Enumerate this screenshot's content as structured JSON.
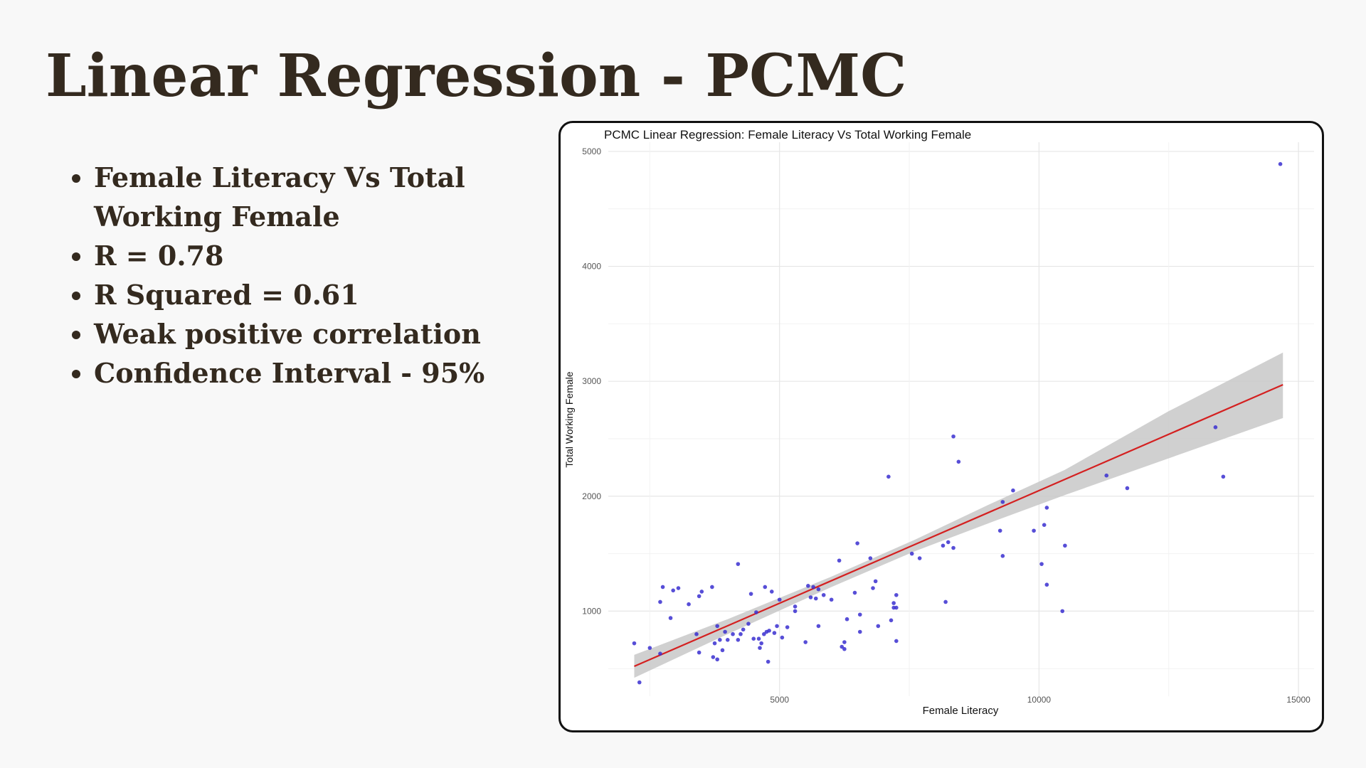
{
  "slide": {
    "title": "Linear Regression - PCMC",
    "bullets": [
      "Female Literacy Vs Total Working Female",
      "R = 0.78",
      "R Squared = 0.61",
      "Weak positive correlation",
      "Confidence Interval - 95%"
    ]
  },
  "chart_data": {
    "type": "scatter",
    "title": "PCMC Linear Regression: Female Literacy Vs Total Working Female",
    "xlabel": "Female Literacy",
    "ylabel": "Total Working Female",
    "xlim": [
      1700,
      15300
    ],
    "ylim": [
      260,
      5080
    ],
    "x_ticks": [
      5000,
      10000,
      15000
    ],
    "x_tick_labels": [
      "5000",
      "10000",
      "15000"
    ],
    "y_ticks": [
      1000,
      2000,
      3000,
      4000,
      5000
    ],
    "y_tick_labels": [
      "1000",
      "2000",
      "3000",
      "4000",
      "5000"
    ],
    "grid": true,
    "legend": "none",
    "point_color": "#3a2fd0",
    "line_color": "#d42020",
    "band_color": "#c8c8c8",
    "regression": {
      "x_start": 2200,
      "y_start": 520,
      "x_end": 14700,
      "y_end": 2970
    },
    "confidence_band": [
      {
        "x": 2200,
        "lower": 420,
        "upper": 620
      },
      {
        "x": 4000,
        "lower": 800,
        "upper": 930
      },
      {
        "x": 6000,
        "lower": 1210,
        "upper": 1300
      },
      {
        "x": 7600,
        "lower": 1520,
        "upper": 1620
      },
      {
        "x": 9000,
        "lower": 1760,
        "upper": 1920
      },
      {
        "x": 10500,
        "lower": 2010,
        "upper": 2230
      },
      {
        "x": 12500,
        "lower": 2330,
        "upper": 2740
      },
      {
        "x": 14700,
        "lower": 2680,
        "upper": 3250
      }
    ],
    "points": [
      {
        "x": 2200,
        "y": 720
      },
      {
        "x": 2300,
        "y": 380
      },
      {
        "x": 2500,
        "y": 680
      },
      {
        "x": 2700,
        "y": 630
      },
      {
        "x": 2700,
        "y": 1080
      },
      {
        "x": 2750,
        "y": 1210
      },
      {
        "x": 2900,
        "y": 940
      },
      {
        "x": 2950,
        "y": 1180
      },
      {
        "x": 3050,
        "y": 1200
      },
      {
        "x": 3250,
        "y": 1060
      },
      {
        "x": 3400,
        "y": 800
      },
      {
        "x": 3450,
        "y": 640
      },
      {
        "x": 3450,
        "y": 1130
      },
      {
        "x": 3500,
        "y": 1170
      },
      {
        "x": 3700,
        "y": 1210
      },
      {
        "x": 3720,
        "y": 600
      },
      {
        "x": 3750,
        "y": 720
      },
      {
        "x": 3800,
        "y": 580
      },
      {
        "x": 3800,
        "y": 870
      },
      {
        "x": 3850,
        "y": 750
      },
      {
        "x": 3900,
        "y": 660
      },
      {
        "x": 3950,
        "y": 820
      },
      {
        "x": 4000,
        "y": 750
      },
      {
        "x": 4100,
        "y": 800
      },
      {
        "x": 4200,
        "y": 750
      },
      {
        "x": 4200,
        "y": 1410
      },
      {
        "x": 4250,
        "y": 800
      },
      {
        "x": 4300,
        "y": 840
      },
      {
        "x": 4400,
        "y": 890
      },
      {
        "x": 4450,
        "y": 1150
      },
      {
        "x": 4500,
        "y": 760
      },
      {
        "x": 4550,
        "y": 990
      },
      {
        "x": 4600,
        "y": 760
      },
      {
        "x": 4620,
        "y": 680
      },
      {
        "x": 4650,
        "y": 720
      },
      {
        "x": 4700,
        "y": 800
      },
      {
        "x": 4720,
        "y": 1210
      },
      {
        "x": 4750,
        "y": 820
      },
      {
        "x": 4780,
        "y": 560
      },
      {
        "x": 4800,
        "y": 830
      },
      {
        "x": 4850,
        "y": 1170
      },
      {
        "x": 4900,
        "y": 810
      },
      {
        "x": 4950,
        "y": 870
      },
      {
        "x": 5000,
        "y": 1100
      },
      {
        "x": 5050,
        "y": 770
      },
      {
        "x": 5150,
        "y": 860
      },
      {
        "x": 5300,
        "y": 1000
      },
      {
        "x": 5300,
        "y": 1040
      },
      {
        "x": 5500,
        "y": 730
      },
      {
        "x": 5550,
        "y": 1220
      },
      {
        "x": 5600,
        "y": 1120
      },
      {
        "x": 5650,
        "y": 1210
      },
      {
        "x": 5700,
        "y": 1110
      },
      {
        "x": 5750,
        "y": 870
      },
      {
        "x": 5750,
        "y": 1190
      },
      {
        "x": 5850,
        "y": 1140
      },
      {
        "x": 6000,
        "y": 1100
      },
      {
        "x": 6150,
        "y": 1440
      },
      {
        "x": 6200,
        "y": 690
      },
      {
        "x": 6250,
        "y": 730
      },
      {
        "x": 6250,
        "y": 670
      },
      {
        "x": 6300,
        "y": 930
      },
      {
        "x": 6450,
        "y": 1160
      },
      {
        "x": 6500,
        "y": 1590
      },
      {
        "x": 6550,
        "y": 820
      },
      {
        "x": 6550,
        "y": 970
      },
      {
        "x": 6750,
        "y": 1460
      },
      {
        "x": 6800,
        "y": 1200
      },
      {
        "x": 6850,
        "y": 1260
      },
      {
        "x": 6900,
        "y": 870
      },
      {
        "x": 7100,
        "y": 2170
      },
      {
        "x": 7150,
        "y": 920
      },
      {
        "x": 7200,
        "y": 1070
      },
      {
        "x": 7200,
        "y": 1030
      },
      {
        "x": 7250,
        "y": 740
      },
      {
        "x": 7250,
        "y": 1140
      },
      {
        "x": 7250,
        "y": 1030
      },
      {
        "x": 7550,
        "y": 1500
      },
      {
        "x": 7700,
        "y": 1460
      },
      {
        "x": 8150,
        "y": 1570
      },
      {
        "x": 8200,
        "y": 1080
      },
      {
        "x": 8250,
        "y": 1600
      },
      {
        "x": 8350,
        "y": 2520
      },
      {
        "x": 8350,
        "y": 1550
      },
      {
        "x": 8450,
        "y": 2300
      },
      {
        "x": 9250,
        "y": 1700
      },
      {
        "x": 9300,
        "y": 1950
      },
      {
        "x": 9300,
        "y": 1480
      },
      {
        "x": 9500,
        "y": 2050
      },
      {
        "x": 9900,
        "y": 1700
      },
      {
        "x": 10050,
        "y": 1410
      },
      {
        "x": 10100,
        "y": 1750
      },
      {
        "x": 10150,
        "y": 1900
      },
      {
        "x": 10150,
        "y": 1230
      },
      {
        "x": 10450,
        "y": 1000
      },
      {
        "x": 10500,
        "y": 1570
      },
      {
        "x": 11300,
        "y": 2180
      },
      {
        "x": 11700,
        "y": 2070
      },
      {
        "x": 13400,
        "y": 2600
      },
      {
        "x": 13550,
        "y": 2170
      },
      {
        "x": 14650,
        "y": 4890
      }
    ]
  }
}
